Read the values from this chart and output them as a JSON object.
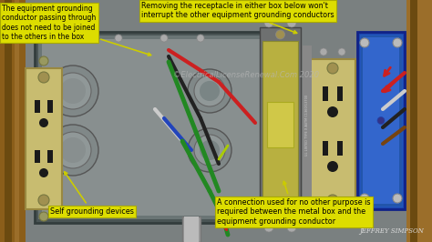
{
  "bg_color": "#1a1a1a",
  "wall_left_color": "#8B5E1A",
  "wall_right_color": "#9B6E2A",
  "panel_bg": "#7a8080",
  "metal_box_outer": "#555e5e",
  "metal_box_inner": "#6a7575",
  "metal_box_face": "#888f8f",
  "knockout_rim": "#999a9a",
  "knockout_inner": "#5a6060",
  "switch_body": "#6e7070",
  "switch_plate": "#b8b040",
  "switch_toggle": "#d0c848",
  "switch_label": "#555555",
  "outlet_body": "#c8bc70",
  "outlet_slot": "#1a1a1a",
  "outlet_screw": "#a09050",
  "blue_box": "#2255aa",
  "blue_box_inner": "#3366cc",
  "screw_color": "#888888",
  "wire_red": "#cc2020",
  "wire_black": "#222222",
  "wire_white": "#cccccc",
  "wire_green": "#228822",
  "wire_blue": "#2244bb",
  "wire_brown": "#774411",
  "wire_yellow_green": "#88cc22",
  "annotation_bg": "#dddd00",
  "annotation_border": "#aaaa00",
  "annotation_text": "#000000",
  "arrow_color": "#cccc00",
  "watermark": "©ElectricalLicenseRenewal.Com 2020",
  "author": "JEFFREY SIMPSON",
  "ann1_text": "The equipment grounding\nconductor passing through\ndoes not need to be joined\nto the others in the box",
  "ann2_text": "Removing the receptacle in either box below won't\ninterrupt the other equipment grounding conductors",
  "ann3_text": "Self grounding devices",
  "ann4_text": "A connection used for no other purpose is\nrequired between the metal box and the\nequipment grounding conductor"
}
